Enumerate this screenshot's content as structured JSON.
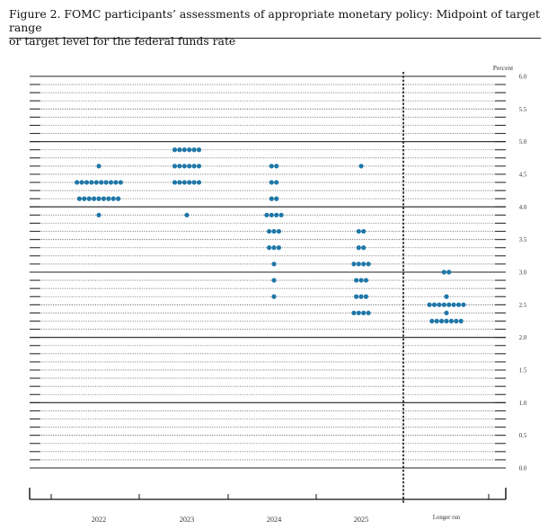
{
  "caption": {
    "line1": "Figure 2.  FOMC participants’ assessments of appropriate monetary policy: Midpoint of target range",
    "line2": "or target level for the federal funds rate"
  },
  "chart_data": {
    "type": "scatter",
    "title": "FOMC participants’ assessments of appropriate monetary policy: Midpoint of target range or target level for the federal funds rate",
    "ylabel": "Percent",
    "ylim": [
      0,
      6.0
    ],
    "y_ticks": [
      "0.0",
      "0.5",
      "1.0",
      "1.5",
      "2.0",
      "2.5",
      "3.0",
      "3.5",
      "4.0",
      "4.5",
      "5.0",
      "5.5",
      "6.0"
    ],
    "categories": [
      "2022",
      "2023",
      "2024",
      "2025",
      "Longer run"
    ],
    "dot_color": "#1f77a8",
    "dots": [
      {
        "category": "2022",
        "levels": [
          {
            "y": 4.625,
            "count": 1
          },
          {
            "y": 4.375,
            "count": 10
          },
          {
            "y": 4.125,
            "count": 9
          },
          {
            "y": 3.875,
            "count": 1
          }
        ]
      },
      {
        "category": "2023",
        "levels": [
          {
            "y": 4.875,
            "count": 6
          },
          {
            "y": 4.625,
            "count": 6
          },
          {
            "y": 4.375,
            "count": 6
          },
          {
            "y": 3.875,
            "count": 1
          }
        ]
      },
      {
        "category": "2024",
        "levels": [
          {
            "y": 4.625,
            "count": 2
          },
          {
            "y": 4.375,
            "count": 2
          },
          {
            "y": 4.125,
            "count": 2
          },
          {
            "y": 3.875,
            "count": 4
          },
          {
            "y": 3.625,
            "count": 3
          },
          {
            "y": 3.375,
            "count": 3
          },
          {
            "y": 3.125,
            "count": 1
          },
          {
            "y": 2.875,
            "count": 1
          },
          {
            "y": 2.625,
            "count": 1
          }
        ]
      },
      {
        "category": "2025",
        "levels": [
          {
            "y": 4.625,
            "count": 1
          },
          {
            "y": 3.625,
            "count": 2
          },
          {
            "y": 3.375,
            "count": 2
          },
          {
            "y": 3.125,
            "count": 4
          },
          {
            "y": 2.875,
            "count": 3
          },
          {
            "y": 2.625,
            "count": 3
          },
          {
            "y": 2.375,
            "count": 4
          }
        ]
      },
      {
        "category": "Longer run",
        "levels": [
          {
            "y": 3.0,
            "count": 2
          },
          {
            "y": 2.625,
            "count": 1
          },
          {
            "y": 2.5,
            "count": 8
          },
          {
            "y": 2.375,
            "count": 1
          },
          {
            "y": 2.25,
            "count": 7
          }
        ]
      }
    ],
    "grid": true,
    "legend": "none"
  }
}
